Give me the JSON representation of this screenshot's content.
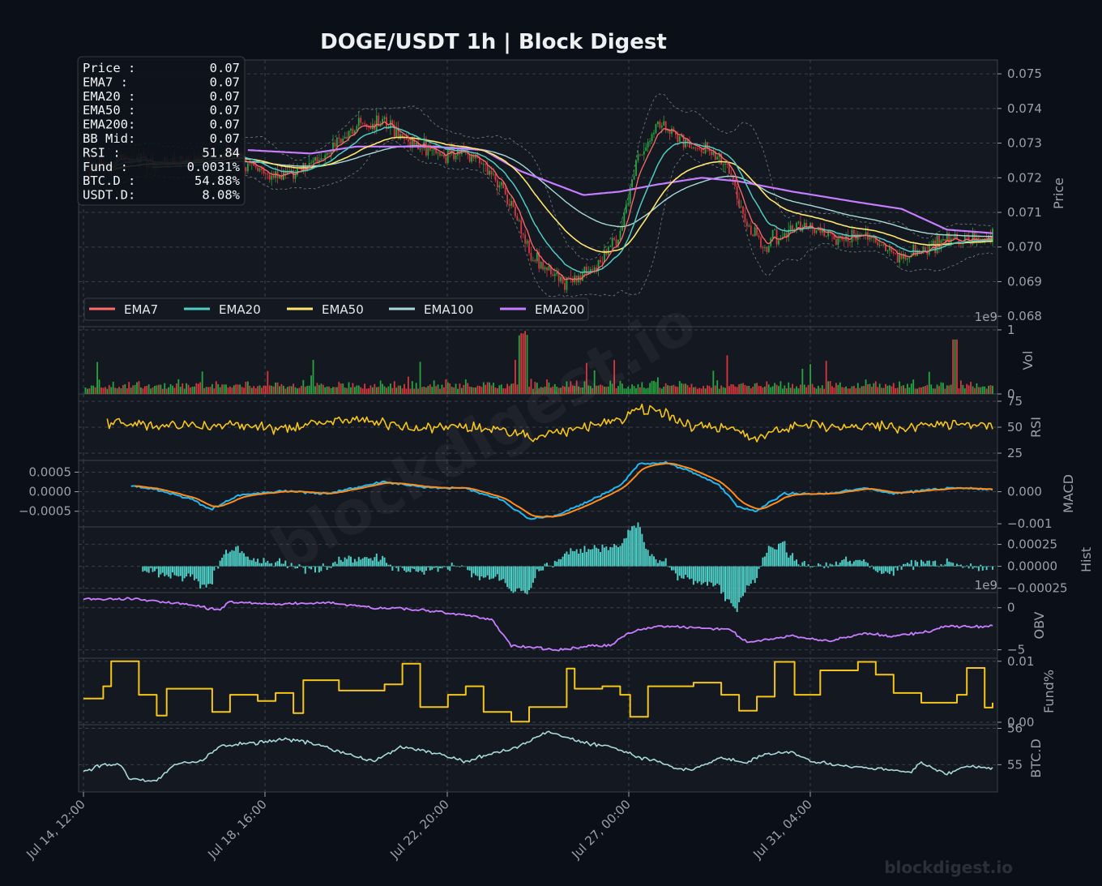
{
  "title": "DOGE/USDT  1h  |  Block Digest",
  "watermark": "blockdigest.io",
  "footer": "blockdigest.io",
  "info_box": {
    "labels": [
      "Price :",
      "EMA7  :",
      "EMA20 :",
      "EMA50 :",
      "EMA200:",
      "BB Mid:",
      "RSI   :",
      "Fund  :",
      "BTC.D :",
      "USDT.D:"
    ],
    "values": [
      "0.07",
      "0.07",
      "0.07",
      "0.07",
      "0.07",
      "0.07",
      "51.84",
      "0.0031%",
      "54.88%",
      "8.08%"
    ]
  },
  "colors": {
    "background": "#0b0f17",
    "panel": "#141820",
    "grid": "#3a3f4a",
    "up": "#26a641",
    "down": "#d9363e",
    "ema7": "#ff6b6b",
    "ema20": "#4ecdc4",
    "ema50": "#ffe66d",
    "ema100": "#a8dadc",
    "ema200": "#c77dff",
    "rsi": "#f5c518",
    "macd": "#1fb8f0",
    "signal": "#ff8c1a",
    "hist": "#4ecdc4",
    "obv": "#c77dff",
    "fund": "#f5c518",
    "btcd": "#a8dadc"
  },
  "chart_data": {
    "type": "line",
    "x_tick_labels": [
      "Jul 14, 12:00",
      "Jul 18, 16:00",
      "Jul 22, 20:00",
      "Jul 27, 00:00",
      "Jul 31, 04:00"
    ],
    "legend": [
      "EMA7",
      "EMA20",
      "EMA50",
      "EMA100",
      "EMA200"
    ],
    "legend_position": "lower-left",
    "grid": true,
    "panels": [
      {
        "id": "price",
        "ylabel": "Price",
        "ylim": [
          0.0677,
          0.0754
        ],
        "ticks": [
          "0.068",
          "0.069",
          "0.070",
          "0.071",
          "0.072",
          "0.073",
          "0.074",
          "0.075"
        ],
        "offset_text": "1e9",
        "close_keypoints": [
          [
            0,
            0.0722
          ],
          [
            0.04,
            0.0726
          ],
          [
            0.08,
            0.0724
          ],
          [
            0.12,
            0.0725
          ],
          [
            0.16,
            0.0728
          ],
          [
            0.2,
            0.072
          ],
          [
            0.24,
            0.0722
          ],
          [
            0.27,
            0.0727
          ],
          [
            0.3,
            0.0735
          ],
          [
            0.33,
            0.0737
          ],
          [
            0.36,
            0.073
          ],
          [
            0.4,
            0.0727
          ],
          [
            0.43,
            0.0726
          ],
          [
            0.45,
            0.0722
          ],
          [
            0.47,
            0.0712
          ],
          [
            0.49,
            0.0698
          ],
          [
            0.51,
            0.0694
          ],
          [
            0.53,
            0.069
          ],
          [
            0.55,
            0.0692
          ],
          [
            0.57,
            0.0695
          ],
          [
            0.59,
            0.0704
          ],
          [
            0.61,
            0.0725
          ],
          [
            0.63,
            0.0735
          ],
          [
            0.66,
            0.073
          ],
          [
            0.69,
            0.0728
          ],
          [
            0.71,
            0.0723
          ],
          [
            0.73,
            0.0705
          ],
          [
            0.75,
            0.07
          ],
          [
            0.78,
            0.0706
          ],
          [
            0.8,
            0.0707
          ],
          [
            0.83,
            0.0702
          ],
          [
            0.86,
            0.0704
          ],
          [
            0.88,
            0.07
          ],
          [
            0.9,
            0.0697
          ],
          [
            0.93,
            0.07
          ],
          [
            0.95,
            0.0703
          ],
          [
            0.97,
            0.0701
          ],
          [
            1.0,
            0.0703
          ]
        ],
        "ema200_keypoints": [
          [
            0.18,
            0.0728
          ],
          [
            0.25,
            0.0727
          ],
          [
            0.3,
            0.0729
          ],
          [
            0.38,
            0.0729
          ],
          [
            0.44,
            0.0728
          ],
          [
            0.48,
            0.0722
          ],
          [
            0.53,
            0.0717
          ],
          [
            0.55,
            0.0715
          ],
          [
            0.59,
            0.0716
          ],
          [
            0.63,
            0.0718
          ],
          [
            0.68,
            0.072
          ],
          [
            0.72,
            0.0719
          ],
          [
            0.78,
            0.0716
          ],
          [
            0.85,
            0.0713
          ],
          [
            0.9,
            0.0711
          ],
          [
            0.95,
            0.0705
          ],
          [
            1.0,
            0.0704
          ]
        ]
      },
      {
        "id": "vol",
        "ylabel": "Vol",
        "ylim": [
          0,
          1.05
        ],
        "ticks": [
          "0",
          "1"
        ]
      },
      {
        "id": "rsi",
        "ylabel": "RSI",
        "ylim": [
          18,
          82
        ],
        "ticks": [
          "25",
          "50",
          "75"
        ]
      },
      {
        "id": "macd",
        "ylabel": "MACD",
        "ylim": [
          -0.0009,
          0.0008
        ],
        "ticks_left": [
          "0.0005",
          "0.0000",
          "−0.0005"
        ],
        "ticks_right": [
          "0.000",
          "−0.001"
        ],
        "keypoints": [
          [
            0.05,
            0.00015
          ],
          [
            0.08,
            5e-05
          ],
          [
            0.12,
            -0.0002
          ],
          [
            0.14,
            -0.00045
          ],
          [
            0.17,
            -0.0001
          ],
          [
            0.22,
            2e-05
          ],
          [
            0.27,
            -5e-05
          ],
          [
            0.33,
            0.00025
          ],
          [
            0.38,
            0.0001
          ],
          [
            0.42,
            8e-05
          ],
          [
            0.46,
            -0.0002
          ],
          [
            0.49,
            -0.0007
          ],
          [
            0.52,
            -0.0006
          ],
          [
            0.56,
            -0.0002
          ],
          [
            0.59,
            0.00015
          ],
          [
            0.61,
            0.0007
          ],
          [
            0.64,
            0.00075
          ],
          [
            0.67,
            0.0005
          ],
          [
            0.7,
            0.00015
          ],
          [
            0.72,
            -0.0004
          ],
          [
            0.74,
            -0.0005
          ],
          [
            0.77,
            -5e-05
          ],
          [
            0.82,
            -5e-05
          ],
          [
            0.86,
            0.0001
          ],
          [
            0.89,
            -5e-05
          ],
          [
            0.93,
            5e-05
          ],
          [
            0.96,
            0.0001
          ],
          [
            1.0,
            5e-05
          ]
        ]
      },
      {
        "id": "hist",
        "ylabel": "Hist",
        "ylim": [
          -0.0003,
          0.00045
        ],
        "ticks": [
          "0.00025",
          "0.00000",
          "−0.00025"
        ],
        "offset_text": "1e9"
      },
      {
        "id": "obv",
        "ylabel": "OBV",
        "ylim": [
          -6,
          1.8
        ],
        "ticks": [
          "0",
          "−5"
        ],
        "keypoints": [
          [
            0,
            1
          ],
          [
            0.06,
            1
          ],
          [
            0.12,
            0.3
          ],
          [
            0.15,
            -0.3
          ],
          [
            0.16,
            0.6
          ],
          [
            0.22,
            0.5
          ],
          [
            0.27,
            0.6
          ],
          [
            0.32,
            0
          ],
          [
            0.38,
            -0.3
          ],
          [
            0.43,
            -1
          ],
          [
            0.45,
            -1.5
          ],
          [
            0.47,
            -4.5
          ],
          [
            0.52,
            -5
          ],
          [
            0.55,
            -4.6
          ],
          [
            0.58,
            -4.5
          ],
          [
            0.6,
            -3
          ],
          [
            0.63,
            -2.2
          ],
          [
            0.67,
            -2.3
          ],
          [
            0.71,
            -2.6
          ],
          [
            0.73,
            -4.1
          ],
          [
            0.78,
            -3.4
          ],
          [
            0.82,
            -4
          ],
          [
            0.86,
            -3
          ],
          [
            0.89,
            -3.4
          ],
          [
            0.93,
            -2.8
          ],
          [
            0.95,
            -2.2
          ],
          [
            1.0,
            -2.2
          ]
        ]
      },
      {
        "id": "fund",
        "ylabel": "Fund%",
        "ylim": [
          -0.0004,
          0.0105
        ],
        "ticks": [
          "0.00",
          "0.01"
        ],
        "keypoints": [
          [
            0,
            0.0039
          ],
          [
            0.02,
            0.0059
          ],
          [
            0.03,
            0.01
          ],
          [
            0.06,
            0.0045
          ],
          [
            0.08,
            0.0011
          ],
          [
            0.09,
            0.0055
          ],
          [
            0.14,
            0.0017
          ],
          [
            0.16,
            0.0045
          ],
          [
            0.19,
            0.0035
          ],
          [
            0.21,
            0.0048
          ],
          [
            0.23,
            0.0015
          ],
          [
            0.24,
            0.0069
          ],
          [
            0.28,
            0.0052
          ],
          [
            0.33,
            0.0062
          ],
          [
            0.35,
            0.0096
          ],
          [
            0.37,
            0.0025
          ],
          [
            0.4,
            0.0045
          ],
          [
            0.42,
            0.0059
          ],
          [
            0.44,
            0.0017
          ],
          [
            0.47,
            0.0001
          ],
          [
            0.49,
            0.0025
          ],
          [
            0.53,
            0.0088
          ],
          [
            0.57,
            0.0059
          ],
          [
            0.59,
            0.0045
          ],
          [
            0.54,
            0.0055
          ],
          [
            0.6,
            0.0009
          ],
          [
            0.62,
            0.0059
          ],
          [
            0.67,
            0.0065
          ],
          [
            0.7,
            0.0045
          ],
          [
            0.72,
            0.0019
          ],
          [
            0.74,
            0.0042
          ],
          [
            0.76,
            0.0099
          ],
          [
            0.78,
            0.0045
          ],
          [
            0.81,
            0.0085
          ],
          [
            0.85,
            0.0099
          ],
          [
            0.87,
            0.0078
          ],
          [
            0.89,
            0.0048
          ],
          [
            0.92,
            0.0032
          ],
          [
            0.96,
            0.0045
          ],
          [
            0.97,
            0.0089
          ],
          [
            0.99,
            0.0024
          ],
          [
            1.0,
            0.0032
          ]
        ]
      },
      {
        "id": "btcd",
        "ylabel": "BTC.D",
        "ylim": [
          54.25,
          56.1
        ],
        "ticks": [
          "55",
          "56"
        ],
        "keypoints": [
          [
            0,
            54.8
          ],
          [
            0.02,
            55.0
          ],
          [
            0.04,
            55.0
          ],
          [
            0.05,
            54.6
          ],
          [
            0.08,
            54.55
          ],
          [
            0.1,
            55.0
          ],
          [
            0.13,
            55.1
          ],
          [
            0.15,
            55.5
          ],
          [
            0.19,
            55.6
          ],
          [
            0.22,
            55.7
          ],
          [
            0.25,
            55.6
          ],
          [
            0.29,
            55.3
          ],
          [
            0.32,
            55.1
          ],
          [
            0.35,
            55.5
          ],
          [
            0.39,
            55.3
          ],
          [
            0.42,
            55.1
          ],
          [
            0.45,
            55.3
          ],
          [
            0.48,
            55.5
          ],
          [
            0.51,
            55.9
          ],
          [
            0.55,
            55.6
          ],
          [
            0.58,
            55.5
          ],
          [
            0.61,
            55.2
          ],
          [
            0.63,
            55.1
          ],
          [
            0.65,
            54.9
          ],
          [
            0.67,
            54.85
          ],
          [
            0.7,
            55.2
          ],
          [
            0.73,
            55.05
          ],
          [
            0.75,
            55.3
          ],
          [
            0.78,
            55.35
          ],
          [
            0.8,
            55.1
          ],
          [
            0.83,
            55.0
          ],
          [
            0.86,
            54.9
          ],
          [
            0.89,
            54.85
          ],
          [
            0.91,
            54.8
          ],
          [
            0.92,
            55.05
          ],
          [
            0.94,
            54.85
          ],
          [
            0.95,
            54.75
          ],
          [
            0.97,
            54.95
          ],
          [
            1.0,
            54.9
          ]
        ]
      }
    ]
  }
}
